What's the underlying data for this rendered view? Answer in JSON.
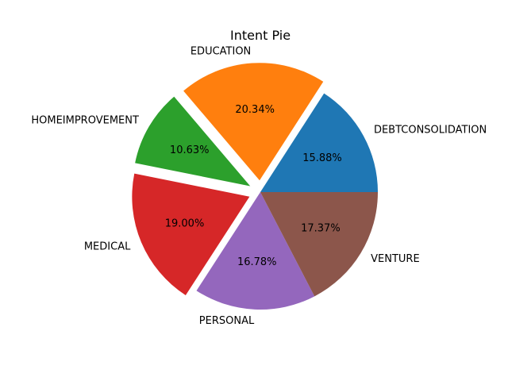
{
  "chart_data": {
    "type": "pie",
    "title": "Intent Pie",
    "categories": [
      "DEBTCONSOLIDATION",
      "EDUCATION",
      "HOMEIMPROVEMENT",
      "MEDICAL",
      "PERSONAL",
      "VENTURE"
    ],
    "values": [
      15.88,
      20.34,
      10.63,
      19.0,
      16.78,
      17.37
    ],
    "value_labels": [
      "15.88%",
      "20.34%",
      "10.63%",
      "19.00%",
      "16.78%",
      "17.37%"
    ],
    "exploded": [
      false,
      true,
      true,
      true,
      false,
      false
    ],
    "colors": [
      "#1f77b4",
      "#ff7f0e",
      "#2ca02c",
      "#d62728",
      "#9467bd",
      "#8c564b"
    ],
    "start_angle_deg": 0,
    "direction": "counterclockwise"
  }
}
